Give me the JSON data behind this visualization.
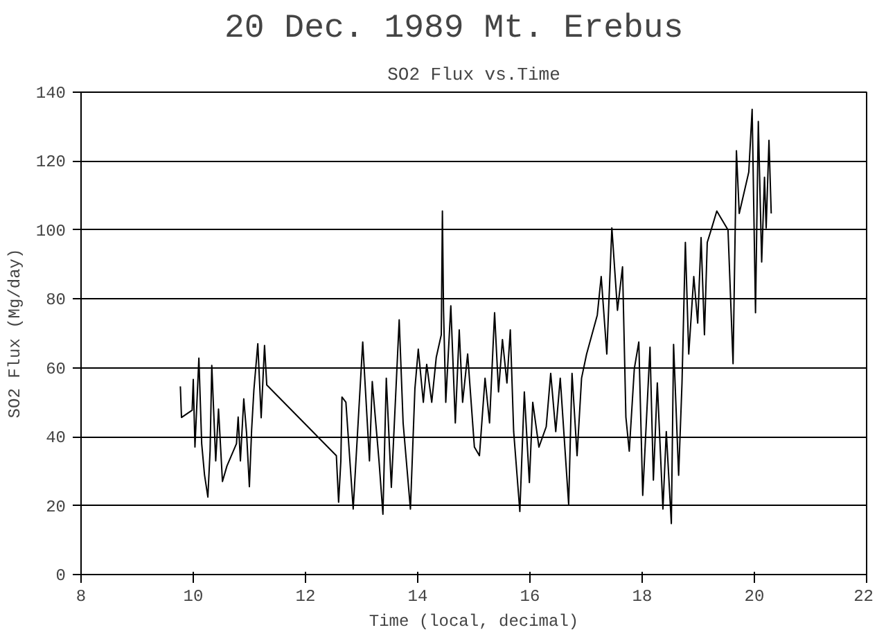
{
  "chart_data": {
    "type": "line",
    "title": "20 Dec. 1989   Mt. Erebus",
    "subtitle": "SO2 Flux vs.Time",
    "xlabel": "Time (local, decimal)",
    "ylabel": "SO2 Flux (Mg/day)",
    "xlim": [
      8,
      22
    ],
    "ylim": [
      0,
      140
    ],
    "xticks": [
      8,
      10,
      12,
      14,
      16,
      18,
      20,
      22
    ],
    "yticks": [
      0,
      20,
      40,
      60,
      80,
      100,
      120,
      140
    ],
    "grid": "y",
    "marker": "none",
    "line_style": "solid",
    "series": [
      {
        "color": "#000000",
        "x": [
          9.77,
          9.79,
          9.98,
          10.0,
          10.03,
          10.1,
          10.15,
          10.2,
          10.26,
          10.3,
          10.33,
          10.4,
          10.45,
          10.52,
          10.6,
          10.77,
          10.8,
          10.84,
          10.9,
          10.95,
          11.0,
          11.04,
          11.08,
          11.15,
          11.21,
          11.27,
          11.31,
          12.55,
          12.59,
          12.63,
          12.65,
          12.72,
          12.85,
          13.02,
          13.14,
          13.19,
          13.31,
          13.38,
          13.44,
          13.53,
          13.67,
          13.74,
          13.87,
          13.95,
          14.01,
          14.1,
          14.16,
          14.25,
          14.33,
          14.42,
          14.44,
          14.46,
          14.5,
          14.59,
          14.67,
          14.74,
          14.8,
          14.89,
          15.01,
          15.1,
          15.2,
          15.28,
          15.37,
          15.44,
          15.51,
          15.59,
          15.65,
          15.71,
          15.82,
          15.9,
          15.99,
          16.05,
          16.16,
          16.29,
          16.37,
          16.46,
          16.54,
          16.69,
          16.75,
          16.84,
          16.92,
          17.01,
          17.2,
          17.27,
          17.37,
          17.46,
          17.56,
          17.65,
          17.71,
          17.77,
          17.86,
          17.94,
          18.01,
          18.14,
          18.2,
          18.27,
          18.37,
          18.43,
          18.52,
          18.56,
          18.65,
          18.71,
          18.77,
          18.83,
          18.92,
          18.99,
          19.05,
          19.11,
          19.16,
          19.24,
          19.33,
          19.53,
          19.62,
          19.68,
          19.73,
          19.9,
          19.96,
          20.02,
          20.07,
          20.13,
          20.18,
          20.21,
          20.26,
          20.3
        ],
        "values": [
          54.6,
          45.6,
          47.7,
          56.6,
          37,
          62.8,
          38,
          29,
          22.5,
          36,
          60.7,
          33,
          48,
          27,
          31.5,
          38,
          45.7,
          33,
          51,
          41,
          25.5,
          42,
          53.5,
          67,
          45.5,
          66.5,
          55,
          34.5,
          21,
          33,
          51.5,
          50,
          19,
          67.5,
          33,
          56,
          33,
          17.5,
          57,
          25.3,
          73.9,
          44,
          19,
          54,
          65.4,
          50,
          61,
          50,
          63,
          69.6,
          105.5,
          76.7,
          50,
          78,
          44,
          71,
          50,
          64,
          37,
          34.5,
          57,
          44,
          76,
          53,
          68.2,
          55.6,
          71,
          41.5,
          18.3,
          53,
          26.7,
          50,
          37,
          42.9,
          58.4,
          41.5,
          57,
          20.4,
          58.4,
          34.5,
          57,
          64,
          75.3,
          86.5,
          64,
          100.6,
          76.7,
          89.3,
          45.7,
          35.8,
          59.7,
          67.5,
          23,
          66,
          27.4,
          55.6,
          19,
          41.5,
          14.8,
          66.8,
          28.8,
          55.6,
          96.4,
          64,
          86.5,
          73,
          97.8,
          69.6,
          96.4,
          100.6,
          105.5,
          100,
          61.2,
          123,
          104.8,
          116.8,
          135,
          76,
          131.5,
          90.7,
          115.3,
          100.6,
          126,
          104.8
        ]
      }
    ]
  }
}
